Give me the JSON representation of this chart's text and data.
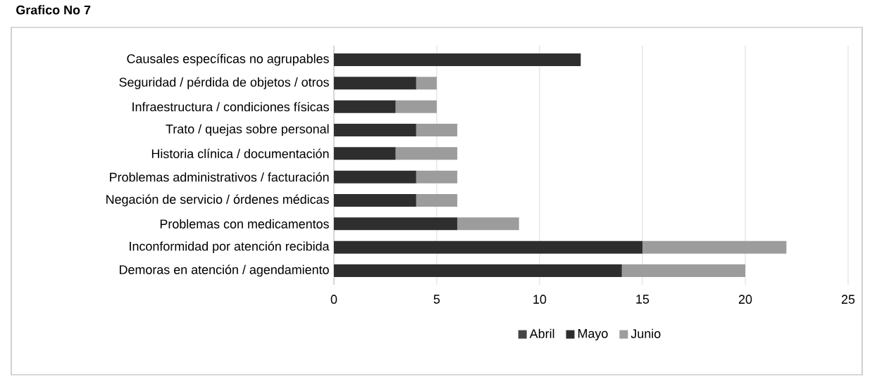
{
  "chart_data": {
    "type": "bar",
    "orientation": "horizontal",
    "stacked": true,
    "title": "Grafico No 7",
    "categories": [
      "Causales específicas no agrupables",
      "Seguridad / pérdida de objetos / otros",
      "Infraestructura / condiciones físicas",
      "Trato / quejas sobre personal",
      "Historia clínica / documentación",
      "Problemas administrativos / facturación",
      "Negación de servicio / órdenes médicas",
      "Problemas con medicamentos",
      "Inconformidad por atención recibida",
      "Demoras en atención / agendamiento"
    ],
    "series": [
      {
        "name": "Abril",
        "color": "#454545",
        "values": [
          0,
          0,
          0,
          0,
          0,
          0,
          0,
          0,
          0,
          0
        ]
      },
      {
        "name": "Mayo",
        "color": "#2e2e2e",
        "values": [
          12,
          4,
          3,
          4,
          3,
          4,
          4,
          6,
          15,
          14
        ]
      },
      {
        "name": "Junio",
        "color": "#9c9c9c",
        "values": [
          0,
          1,
          2,
          2,
          3,
          2,
          2,
          3,
          7,
          6
        ]
      }
    ],
    "xlim": [
      0,
      25
    ],
    "xticks": [
      0,
      5,
      10,
      15,
      20,
      25
    ],
    "grid": "x",
    "legend": "bottom"
  }
}
